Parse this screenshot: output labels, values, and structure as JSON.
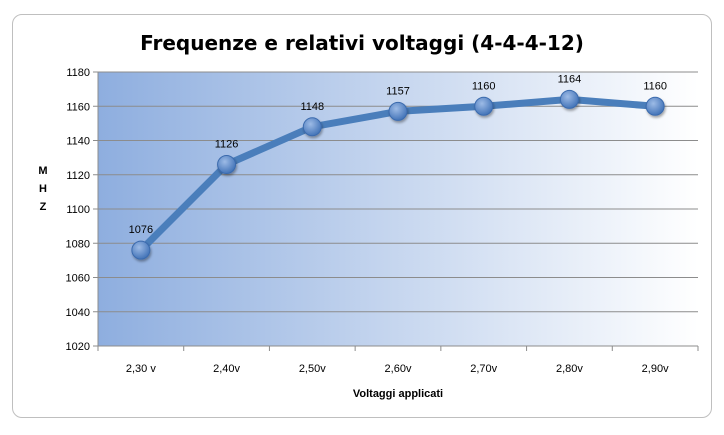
{
  "chart_data": {
    "type": "line",
    "title": "Frequenze e relativi voltaggi (4-4-4-12)",
    "xlabel": "Voltaggi applicati",
    "ylabel": "MHZ",
    "categories": [
      "2,30 v",
      "2,40v",
      "2,50v",
      "2,60v",
      "2,70v",
      "2,80v",
      "2,90v"
    ],
    "series": [
      {
        "values": [
          1076,
          1126,
          1148,
          1157,
          1160,
          1164,
          1160
        ]
      }
    ],
    "data_labels": [
      "1076",
      "1126",
      "1148",
      "1157",
      "1160",
      "1164",
      "1160"
    ],
    "ylim": [
      1020,
      1180
    ],
    "yticks": [
      1020,
      1040,
      1060,
      1080,
      1100,
      1120,
      1140,
      1160,
      1180
    ],
    "ytick_labels": [
      "1020",
      "1040",
      "1060",
      "1080",
      "1100",
      "1120",
      "1140",
      "1160",
      "1180"
    ],
    "grid": true,
    "legend": "none",
    "colors": {
      "line": "#4a7ebb",
      "marker": "#4f81bd",
      "plot_gradient_start": "#8eaedf",
      "plot_gradient_end": "#ffffff",
      "gridline": "#8c8c8c"
    }
  }
}
